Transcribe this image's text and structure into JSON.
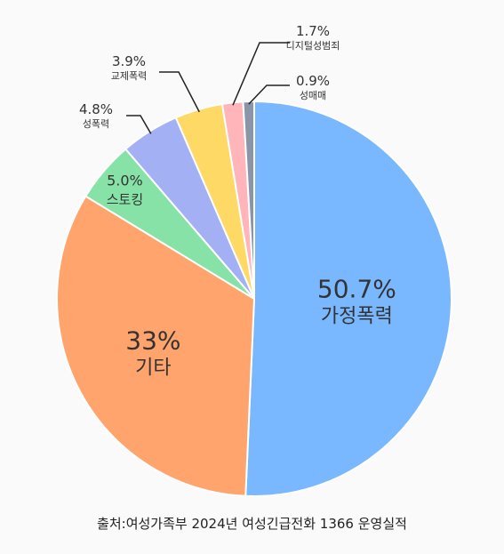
{
  "chart_data": {
    "type": "pie",
    "categories": [
      "가정폭력",
      "기타",
      "스토킹",
      "성폭력",
      "교제폭력",
      "디지털성범죄",
      "성매매"
    ],
    "values": [
      50.7,
      33,
      5.0,
      4.8,
      3.9,
      1.7,
      0.9
    ],
    "value_labels": [
      "50.7%",
      "33%",
      "5.0%",
      "4.8%",
      "3.9%",
      "1.7%",
      "0.9%"
    ],
    "colors": [
      "#79b8ff",
      "#ffa46c",
      "#86e2a6",
      "#a3b1f4",
      "#ffd966",
      "#ffb5b9",
      "#8a96a8"
    ],
    "source": "출처:여성가족부 2024년 여성긴급전화 1366 운영실적"
  }
}
